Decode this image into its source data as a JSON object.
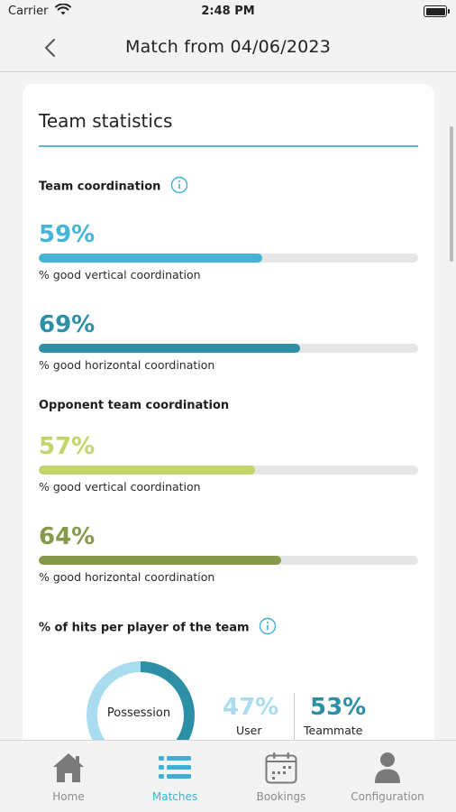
{
  "status_bar": {
    "carrier": "Carrier",
    "time": "2:48 PM"
  },
  "nav": {
    "title": "Match from 04/06/2023"
  },
  "card": {
    "title": "Team statistics",
    "team_section": {
      "heading": "Team coordination",
      "stats": [
        {
          "value": "59%",
          "fraction": 0.59,
          "label": "% good vertical coordination",
          "color": "#45b4d6"
        },
        {
          "value": "69%",
          "fraction": 0.69,
          "label": "% good horizontal coordination",
          "color": "#2d8fa6"
        }
      ]
    },
    "opponent_section": {
      "heading": "Opponent team coordination",
      "stats": [
        {
          "value": "57%",
          "fraction": 0.57,
          "label": "% good vertical coordination",
          "color": "#c4d36a"
        },
        {
          "value": "64%",
          "fraction": 0.64,
          "label": "% good horizontal coordination",
          "color": "#86994a"
        }
      ]
    },
    "hits_section": {
      "heading": "% of hits per player of the team",
      "donut_label": "Possession",
      "user": {
        "value": "47%",
        "fraction": 0.47,
        "label": "User",
        "color": "#a8dcee"
      },
      "teammate": {
        "value": "53%",
        "fraction": 0.53,
        "label": "Teammate",
        "color": "#2d8fa6"
      }
    }
  },
  "colors": {
    "accent": "#3fb0d3",
    "track": "#e6e6e6",
    "inactive": "#8a8a8a"
  },
  "tabs": [
    {
      "label": "Home",
      "icon": "home-icon",
      "active": false
    },
    {
      "label": "Matches",
      "icon": "list-icon",
      "active": true
    },
    {
      "label": "Bookings",
      "icon": "calendar-icon",
      "active": false
    },
    {
      "label": "Configuration",
      "icon": "user-icon",
      "active": false
    }
  ]
}
